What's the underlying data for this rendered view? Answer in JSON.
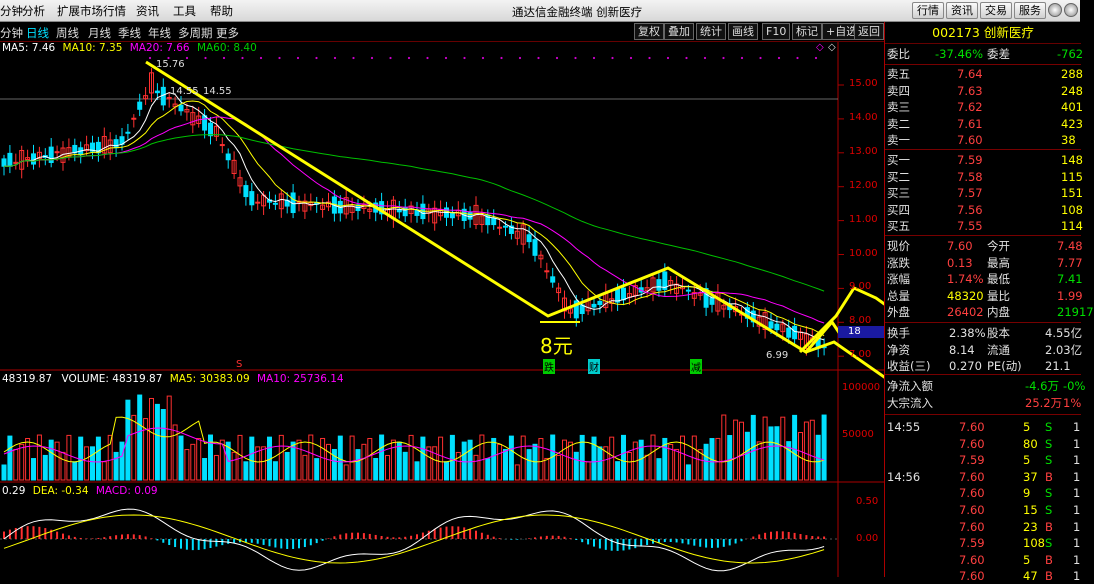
{
  "menu": {
    "items": [
      "分钟",
      "分析",
      "扩展市场行情",
      "资讯",
      "工具",
      "帮助"
    ],
    "app_title": "通达信金融终端 创新医疗",
    "top_buttons": [
      "行情",
      "资讯",
      "交易",
      "服务"
    ]
  },
  "periods": [
    "分钟",
    "日线",
    "周线",
    "月线",
    "季线",
    "年线",
    "多周期",
    "更多"
  ],
  "toolbar_right": [
    "复权",
    "叠加",
    "统计",
    "画线",
    "F10",
    "标记",
    "+自选",
    "返回"
  ],
  "ma_header": {
    "ma5": "MA5: 7.46",
    "ma10": "MA10: 7.35",
    "ma20": "MA20: 7.66",
    "ma60": "MA60: 8.40"
  },
  "volume_header": {
    "left": "48319.87",
    "volume": "VOLUME: 48319.87",
    "ma5": "MA5: 30383.09",
    "ma10": "MA10: 25736.14"
  },
  "macd_header": {
    "dif": "0.29",
    "dea": "DEA: -0.34",
    "macd": "MACD: 0.09"
  },
  "price_axis": [
    "15.00",
    "14.00",
    "13.00",
    "12.00",
    "11.00",
    "10.00",
    "9.00",
    "8.00",
    "7.00"
  ],
  "volume_axis": [
    "100000",
    "50000"
  ],
  "macd_axis": [
    "0.50",
    "0.00"
  ],
  "annotations": {
    "high": "15.76",
    "mid": "14.55",
    "mid2": "14.55",
    "low": "6.99",
    "price_target": "8元",
    "cur_tag": "18",
    "marker_s": "S",
    "marker_die": "跌",
    "marker_cai": "财",
    "marker_jian": "减"
  },
  "colors": {
    "up": "#ff3030",
    "down": "#00e0ff",
    "ma5": "#ffffff",
    "ma10": "#ffff00",
    "ma20": "#ff00ff",
    "ma60": "#00c000",
    "trend": "#ffff00"
  },
  "quote": {
    "code_name": "002173 创新医疗",
    "weibi_label": "委比",
    "weibi_value": "-37.46%",
    "weicha_label": "委差",
    "weicha_value": "-762",
    "asks": [
      {
        "label": "卖五",
        "price": "7.64",
        "vol": "288"
      },
      {
        "label": "卖四",
        "price": "7.63",
        "vol": "248"
      },
      {
        "label": "卖三",
        "price": "7.62",
        "vol": "401"
      },
      {
        "label": "卖二",
        "price": "7.61",
        "vol": "423"
      },
      {
        "label": "卖一",
        "price": "7.60",
        "vol": "38"
      }
    ],
    "bids": [
      {
        "label": "买一",
        "price": "7.59",
        "vol": "148"
      },
      {
        "label": "买二",
        "price": "7.58",
        "vol": "115"
      },
      {
        "label": "买三",
        "price": "7.57",
        "vol": "151"
      },
      {
        "label": "买四",
        "price": "7.56",
        "vol": "108"
      },
      {
        "label": "买五",
        "price": "7.55",
        "vol": "114"
      }
    ],
    "stats": [
      {
        "l1": "现价",
        "v1": "7.60",
        "l2": "今开",
        "v2": "7.48",
        "c1": "red",
        "c2": "red"
      },
      {
        "l1": "涨跌",
        "v1": "0.13",
        "l2": "最高",
        "v2": "7.77",
        "c1": "red",
        "c2": "red"
      },
      {
        "l1": "涨幅",
        "v1": "1.74%",
        "l2": "最低",
        "v2": "7.41",
        "c1": "red",
        "c2": "grn"
      },
      {
        "l1": "总量",
        "v1": "48320",
        "l2": "量比",
        "v2": "1.99",
        "c1": "yel",
        "c2": "red"
      },
      {
        "l1": "外盘",
        "v1": "26402",
        "l2": "内盘",
        "v2": "21917",
        "c1": "red",
        "c2": "grn"
      }
    ],
    "fund": [
      {
        "l1": "换手",
        "v1": "2.38%",
        "l2": "股本",
        "v2": "4.55亿"
      },
      {
        "l1": "净资",
        "v1": "8.14",
        "l2": "流通",
        "v2": "2.03亿"
      },
      {
        "l1": "收益(三)",
        "v1": "0.270",
        "l2": "PE(动)",
        "v2": "21.1"
      }
    ],
    "flows": [
      {
        "label": "净流入额",
        "value": "-4.6万",
        "pct": "-0%"
      },
      {
        "label": "大宗流入",
        "value": "25.2万",
        "pct": "1%"
      }
    ],
    "ticks": [
      {
        "time": "14:55",
        "price": "7.60",
        "vol": "5",
        "side": "S",
        "n": "1"
      },
      {
        "time": "",
        "price": "7.60",
        "vol": "80",
        "side": "S",
        "n": "1"
      },
      {
        "time": "",
        "price": "7.59",
        "vol": "5",
        "side": "S",
        "n": "1"
      },
      {
        "time": "14:56",
        "price": "7.60",
        "vol": "37",
        "side": "B",
        "n": "1"
      },
      {
        "time": "",
        "price": "7.60",
        "vol": "9",
        "side": "S",
        "n": "1"
      },
      {
        "time": "",
        "price": "7.60",
        "vol": "15",
        "side": "S",
        "n": "1"
      },
      {
        "time": "",
        "price": "7.60",
        "vol": "23",
        "side": "B",
        "n": "1"
      },
      {
        "time": "",
        "price": "7.59",
        "vol": "108",
        "side": "S",
        "n": "1"
      },
      {
        "time": "",
        "price": "7.60",
        "vol": "5",
        "side": "B",
        "n": "1"
      },
      {
        "time": "",
        "price": "7.60",
        "vol": "47",
        "side": "B",
        "n": "1"
      }
    ]
  }
}
